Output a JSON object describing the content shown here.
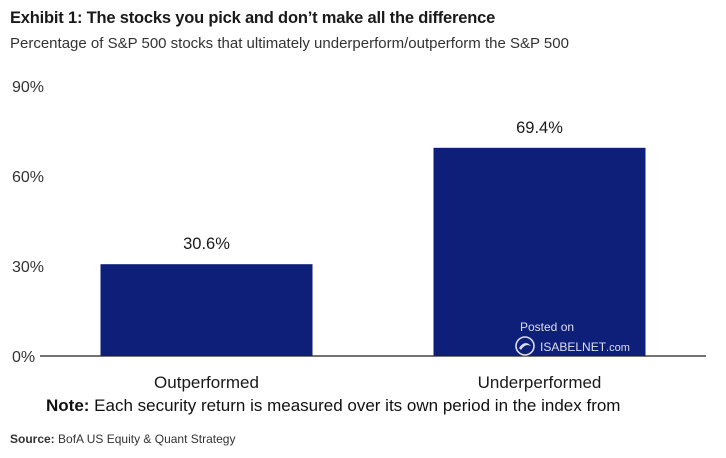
{
  "header": {
    "title": "Exhibit 1: The stocks you pick and don’t make all the difference",
    "subtitle": "Percentage of S&P 500 stocks that ultimately underperform/outperform the S&P 500"
  },
  "chart_data": {
    "type": "bar",
    "categories": [
      "Outperformed",
      "Underperformed"
    ],
    "values": [
      30.6,
      69.4
    ],
    "data_labels": [
      "30.6%",
      "69.4%"
    ],
    "ylim": [
      0,
      90
    ],
    "yticks": [
      0,
      30,
      60,
      90
    ],
    "ytick_labels": [
      "0%",
      "30%",
      "60%",
      "90%"
    ],
    "bar_color": "#0e1f7a",
    "grid": false,
    "legend": "none"
  },
  "footer": {
    "note_bold": "Note:",
    "note_text": " Each security return is measured over its own period in the index from",
    "source_bold": "Source:",
    "source_text": " BofA US Equity & Quant Strategy"
  },
  "watermark": {
    "posted": "Posted on",
    "brand": "ISABELNET",
    "brand_suffix": ".com"
  }
}
